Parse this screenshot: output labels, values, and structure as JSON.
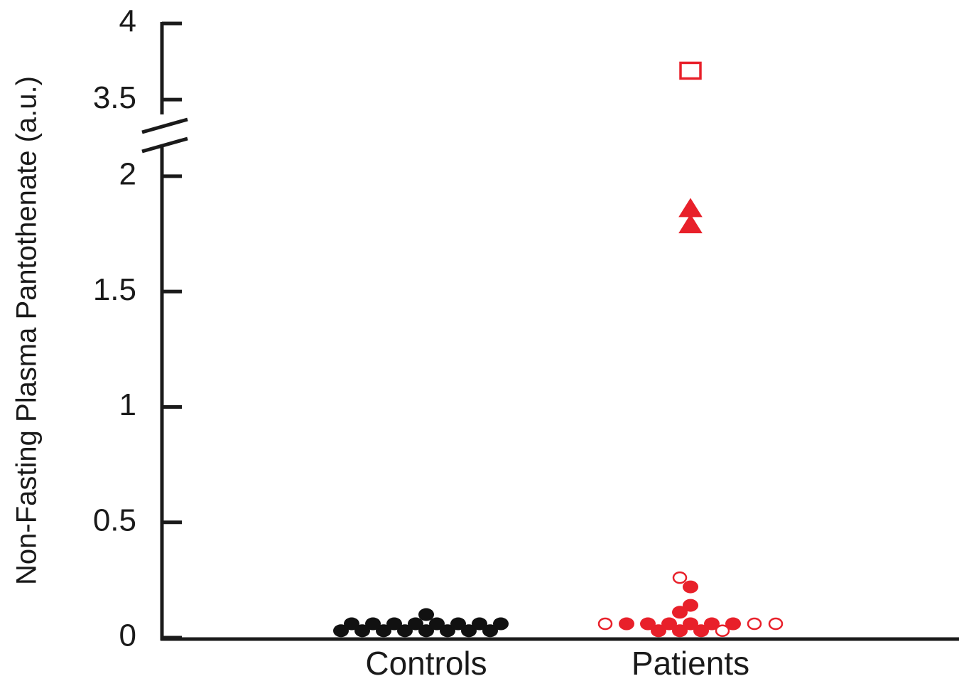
{
  "chart_data": {
    "type": "dot",
    "y_label": "Non-Fasting Plasma Pantothenate (a.u.)",
    "categories": [
      "Controls",
      "Patients"
    ],
    "ylim": [
      0,
      4
    ],
    "ybreak": [
      2.2,
      3.3
    ],
    "yticks": [
      0,
      0.5,
      1,
      1.5,
      2,
      3.5,
      4
    ],
    "groups": [
      [
        {
          "marker": "circle",
          "filled": true,
          "color": "#111111",
          "values": [
            0.03,
            0.06,
            0.03,
            0.06,
            0.03,
            0.06,
            0.03,
            0.06,
            0.1,
            0.06,
            0.03,
            0.06,
            0.03,
            0.06,
            0.03,
            0.06,
            0.03
          ]
        }
      ],
      [
        {
          "marker": "circle",
          "filled": true,
          "color": "#e8202a",
          "values": [
            0.22,
            0.14,
            0.11,
            0.06,
            0.06,
            0.06,
            0.03,
            0.06,
            0.06,
            0.03,
            0.06,
            0.03
          ]
        },
        {
          "marker": "circle",
          "filled": false,
          "color": "#e8202a",
          "values": [
            0.26,
            0.06,
            0.03,
            0.06,
            0.06
          ]
        },
        {
          "marker": "triangle",
          "filled": true,
          "color": "#e8202a",
          "values": [
            1.86,
            1.79
          ]
        },
        {
          "marker": "square",
          "filled": false,
          "color": "#e8202a",
          "values": [
            3.69
          ]
        }
      ]
    ]
  }
}
